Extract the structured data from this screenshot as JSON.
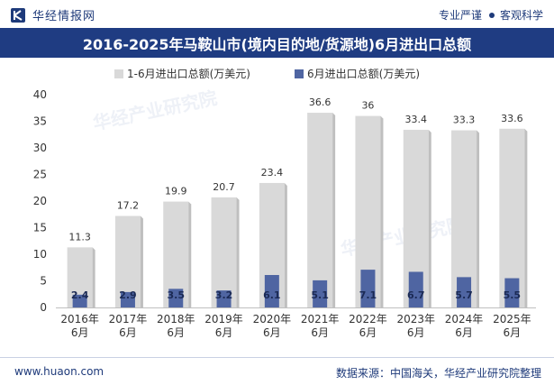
{
  "header": {
    "brand": "华经情报网",
    "tagline_left": "专业严谨",
    "tagline_right": "客观科学"
  },
  "footer": {
    "website": "www.huaon.com",
    "source": "数据来源：中国海关，华经产业研究院整理"
  },
  "watermark": "华经产业研究院",
  "colors": {
    "title_bg": "#1f3c82",
    "series_total": "#d9d9d9",
    "series_june": "#4f65a2",
    "text_dark": "#1e3a7a"
  },
  "chart_data": {
    "type": "bar",
    "title": "2016-2025年马鞍山市(境内目的地/货源地)6月进出口总额",
    "categories": [
      "2016年\n6月",
      "2017年\n6月",
      "2018年\n6月",
      "2019年\n6月",
      "2020年\n6月",
      "2021年\n6月",
      "2022年\n6月",
      "2023年\n6月",
      "2024年\n6月",
      "2025年\n6月"
    ],
    "series": [
      {
        "name": "1-6月进出口总额(万美元)",
        "values": [
          11.3,
          17.2,
          19.9,
          20.7,
          23.4,
          36.6,
          36,
          33.4,
          33.3,
          33.6
        ]
      },
      {
        "name": "6月进出口总额(万美元)",
        "values": [
          2.4,
          2.9,
          3.5,
          3.2,
          6.1,
          5.1,
          7.1,
          6.7,
          5.7,
          5.5
        ]
      }
    ],
    "ylim": [
      0,
      40
    ],
    "yticks": [
      0,
      5,
      10,
      15,
      20,
      25,
      30,
      35,
      40
    ],
    "xlabel": "",
    "ylabel": "",
    "legend": "top-center",
    "grid": false
  }
}
